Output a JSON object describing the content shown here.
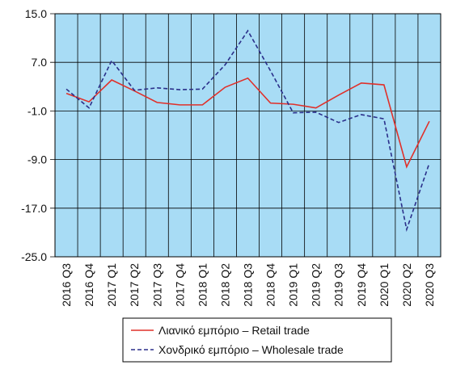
{
  "chart_data": {
    "type": "line",
    "categories": [
      "2016 Q3",
      "2016 Q4",
      "2017 Q1",
      "2017 Q2",
      "2017 Q3",
      "2017 Q4",
      "2018 Q1",
      "2018 Q2",
      "2018 Q3",
      "2018 Q4",
      "2019 Q1",
      "2019 Q2",
      "2019 Q3",
      "2019 Q4",
      "2020 Q1",
      "2020 Q2",
      "2020 Q3"
    ],
    "series": [
      {
        "name": "Λιανικό εμπόριο – Retail trade",
        "color": "#e0302a",
        "dash": false,
        "values": [
          1.9,
          0.5,
          4.1,
          2.3,
          0.4,
          0.0,
          0.0,
          2.9,
          4.4,
          0.3,
          0.1,
          -0.5,
          1.6,
          3.6,
          3.3,
          -10.2,
          -2.7
        ]
      },
      {
        "name": "Χονδρικό εμπόριο – Wholesale trade",
        "color": "#2a2f8a",
        "dash": true,
        "values": [
          2.6,
          -0.5,
          7.3,
          2.4,
          2.8,
          2.5,
          2.6,
          6.6,
          12.2,
          5.6,
          -1.3,
          -1.2,
          -2.9,
          -1.6,
          -2.3,
          -20.5,
          -9.6
        ]
      }
    ],
    "ylim": [
      -25,
      15
    ],
    "yticks": [
      {
        "value": 15,
        "label": "15.0"
      },
      {
        "value": 7,
        "label": "7.0"
      },
      {
        "value": -1,
        "label": "-1.0"
      },
      {
        "value": -9,
        "label": "-9.0"
      },
      {
        "value": -17,
        "label": "-17.0"
      },
      {
        "value": -25,
        "label": "-25.0"
      }
    ],
    "grid": true,
    "legend": "bottom",
    "plot_background": "#a8dcf5"
  }
}
